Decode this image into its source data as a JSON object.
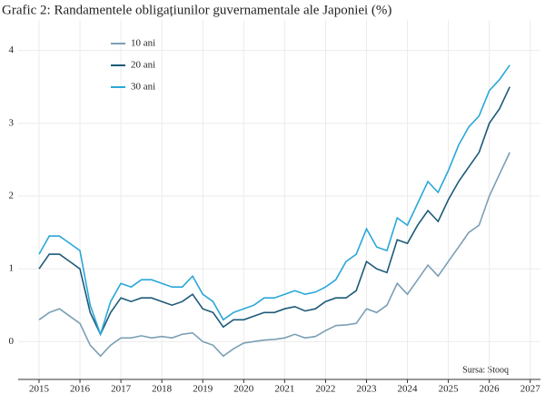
{
  "chart_data": {
    "type": "line",
    "title": "Grafic 2: Randamentele obligațiunilor guvernamentale ale Japoniei (%)",
    "annotation": "Sursa: Stooq",
    "x": [
      2015.0,
      2015.25,
      2015.5,
      2015.75,
      2016.0,
      2016.25,
      2016.5,
      2016.75,
      2017.0,
      2017.25,
      2017.5,
      2017.75,
      2018.0,
      2018.25,
      2018.5,
      2018.75,
      2019.0,
      2019.25,
      2019.5,
      2019.75,
      2020.0,
      2020.25,
      2020.5,
      2020.75,
      2021.0,
      2021.25,
      2021.5,
      2021.75,
      2022.0,
      2022.25,
      2022.5,
      2022.75,
      2023.0,
      2023.25,
      2023.5,
      2023.75,
      2024.0,
      2024.25,
      2024.5,
      2024.75,
      2025.0,
      2025.25,
      2025.5,
      2025.75,
      2026.0,
      2026.25,
      2026.5
    ],
    "series": [
      {
        "name": "10 ani",
        "color": "#7b9fb5",
        "values": [
          0.3,
          0.4,
          0.45,
          0.35,
          0.25,
          -0.05,
          -0.2,
          -0.05,
          0.05,
          0.05,
          0.08,
          0.05,
          0.07,
          0.05,
          0.1,
          0.12,
          0.0,
          -0.05,
          -0.2,
          -0.1,
          -0.02,
          0.0,
          0.02,
          0.03,
          0.05,
          0.1,
          0.05,
          0.07,
          0.15,
          0.22,
          0.23,
          0.25,
          0.45,
          0.4,
          0.5,
          0.8,
          0.65,
          0.85,
          1.05,
          0.9,
          1.1,
          1.3,
          1.5,
          1.6,
          2.0,
          2.3,
          2.6
        ]
      },
      {
        "name": "20 ani",
        "color": "#1c5a78",
        "values": [
          1.0,
          1.2,
          1.2,
          1.1,
          1.0,
          0.4,
          0.1,
          0.4,
          0.6,
          0.55,
          0.6,
          0.6,
          0.55,
          0.5,
          0.55,
          0.65,
          0.45,
          0.4,
          0.2,
          0.3,
          0.3,
          0.35,
          0.4,
          0.4,
          0.45,
          0.48,
          0.42,
          0.45,
          0.55,
          0.6,
          0.6,
          0.7,
          1.1,
          1.0,
          0.95,
          1.4,
          1.35,
          1.6,
          1.8,
          1.65,
          1.95,
          2.2,
          2.4,
          2.6,
          3.0,
          3.2,
          3.5
        ]
      },
      {
        "name": "30 ani",
        "color": "#2aa8d8",
        "values": [
          1.2,
          1.45,
          1.45,
          1.35,
          1.25,
          0.5,
          0.1,
          0.55,
          0.8,
          0.75,
          0.85,
          0.85,
          0.8,
          0.75,
          0.75,
          0.9,
          0.65,
          0.55,
          0.3,
          0.4,
          0.45,
          0.5,
          0.6,
          0.6,
          0.65,
          0.7,
          0.65,
          0.68,
          0.75,
          0.85,
          1.1,
          1.2,
          1.55,
          1.3,
          1.25,
          1.7,
          1.6,
          1.9,
          2.2,
          2.05,
          2.35,
          2.7,
          2.95,
          3.1,
          3.45,
          3.6,
          3.8
        ]
      }
    ],
    "xlim": [
      2014.49,
      2027.25
    ],
    "xticks": [
      2015,
      2016,
      2017,
      2018,
      2019,
      2020,
      2021,
      2022,
      2023,
      2024,
      2025,
      2026,
      2027
    ],
    "ylim": [
      -0.52,
      4.42
    ],
    "yticks": [
      0,
      1,
      2,
      3,
      4
    ],
    "grid": true
  }
}
